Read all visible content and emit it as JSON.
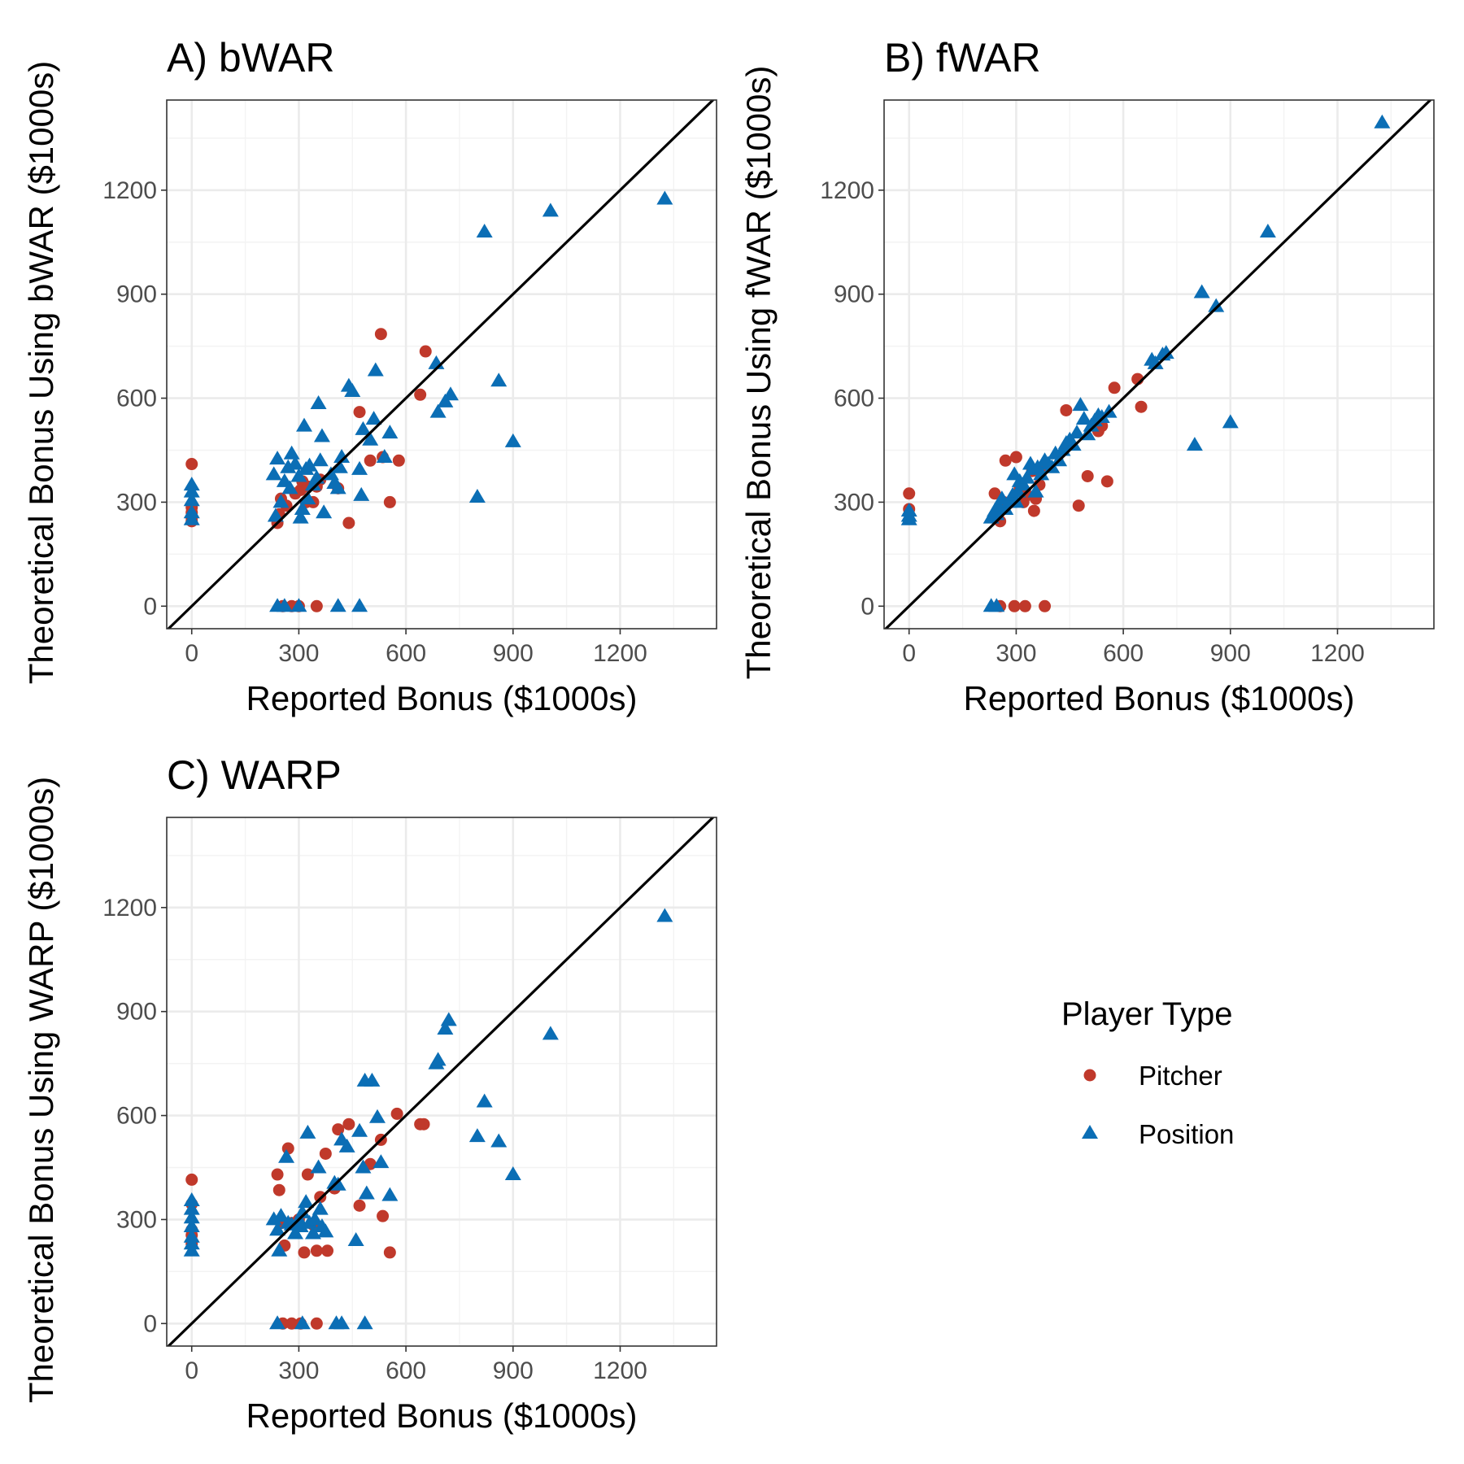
{
  "colors": {
    "pitcher": "#C0392B",
    "position": "#0B6EB5"
  },
  "legend": {
    "title": "Player Type",
    "items": [
      {
        "label": "Pitcher",
        "shape": "circle",
        "color": "#C0392B"
      },
      {
        "label": "Position",
        "shape": "triangle",
        "color": "#0B6EB5"
      }
    ]
  },
  "chart_data": [
    {
      "type": "scatter",
      "title": "A) bWAR",
      "xlabel": "Reported Bonus ($1000s)",
      "ylabel": "Theoretical Bonus Using bWAR ($1000s)",
      "xlim": [
        -70,
        1470
      ],
      "ylim": [
        -65,
        1460
      ],
      "xticks": [
        0,
        300,
        600,
        900,
        1200
      ],
      "yticks": [
        0,
        300,
        600,
        900,
        1200
      ],
      "grid": true,
      "reference_line": "y = x",
      "series": [
        {
          "name": "Pitcher",
          "marker": "circle",
          "points": [
            [
              0,
              410
            ],
            [
              0,
              285
            ],
            [
              0,
              270
            ],
            [
              0,
              255
            ],
            [
              0,
              245
            ],
            [
              240,
              240
            ],
            [
              245,
              265
            ],
            [
              250,
              310
            ],
            [
              265,
              290
            ],
            [
              290,
              325
            ],
            [
              305,
              335
            ],
            [
              310,
              360
            ],
            [
              320,
              300
            ],
            [
              325,
              345
            ],
            [
              340,
              300
            ],
            [
              350,
              345
            ],
            [
              360,
              365
            ],
            [
              410,
              340
            ],
            [
              440,
              240
            ],
            [
              470,
              560
            ],
            [
              500,
              420
            ],
            [
              530,
              785
            ],
            [
              535,
              430
            ],
            [
              555,
              300
            ],
            [
              580,
              420
            ],
            [
              640,
              610
            ],
            [
              655,
              735
            ],
            [
              255,
              0
            ],
            [
              280,
              0
            ],
            [
              300,
              0
            ],
            [
              350,
              0
            ]
          ]
        },
        {
          "name": "Position",
          "marker": "triangle",
          "points": [
            [
              0,
              350
            ],
            [
              0,
              330
            ],
            [
              0,
              305
            ],
            [
              0,
              270
            ],
            [
              0,
              250
            ],
            [
              230,
              380
            ],
            [
              235,
              260
            ],
            [
              240,
              425
            ],
            [
              250,
              300
            ],
            [
              260,
              360
            ],
            [
              270,
              400
            ],
            [
              275,
              340
            ],
            [
              280,
              440
            ],
            [
              290,
              410
            ],
            [
              300,
              375
            ],
            [
              305,
              255
            ],
            [
              310,
              280
            ],
            [
              315,
              520
            ],
            [
              320,
              395
            ],
            [
              325,
              310
            ],
            [
              330,
              405
            ],
            [
              340,
              350
            ],
            [
              350,
              370
            ],
            [
              355,
              585
            ],
            [
              360,
              420
            ],
            [
              365,
              490
            ],
            [
              370,
              270
            ],
            [
              390,
              380
            ],
            [
              400,
              355
            ],
            [
              410,
              340
            ],
            [
              415,
              400
            ],
            [
              420,
              430
            ],
            [
              440,
              635
            ],
            [
              450,
              620
            ],
            [
              470,
              395
            ],
            [
              475,
              320
            ],
            [
              480,
              510
            ],
            [
              500,
              480
            ],
            [
              510,
              540
            ],
            [
              515,
              680
            ],
            [
              540,
              430
            ],
            [
              555,
              500
            ],
            [
              685,
              700
            ],
            [
              690,
              560
            ],
            [
              710,
              590
            ],
            [
              725,
              610
            ],
            [
              800,
              315
            ],
            [
              820,
              1080
            ],
            [
              860,
              650
            ],
            [
              900,
              475
            ],
            [
              1005,
              1140
            ],
            [
              1325,
              1175
            ],
            [
              240,
              0
            ],
            [
              260,
              0
            ],
            [
              300,
              0
            ],
            [
              410,
              0
            ],
            [
              470,
              0
            ]
          ]
        }
      ]
    },
    {
      "type": "scatter",
      "title": "B) fWAR",
      "xlabel": "Reported Bonus ($1000s)",
      "ylabel": "Theoretical Bonus Using fWAR ($1000s)",
      "xlim": [
        -70,
        1470
      ],
      "ylim": [
        -65,
        1460
      ],
      "xticks": [
        0,
        300,
        600,
        900,
        1200
      ],
      "yticks": [
        0,
        300,
        600,
        900,
        1200
      ],
      "grid": true,
      "reference_line": "y = x",
      "series": [
        {
          "name": "Pitcher",
          "marker": "circle",
          "points": [
            [
              0,
              325
            ],
            [
              0,
              280
            ],
            [
              240,
              325
            ],
            [
              255,
              245
            ],
            [
              265,
              300
            ],
            [
              270,
              420
            ],
            [
              285,
              300
            ],
            [
              300,
              430
            ],
            [
              310,
              340
            ],
            [
              320,
              300
            ],
            [
              330,
              320
            ],
            [
              345,
              390
            ],
            [
              350,
              275
            ],
            [
              355,
              310
            ],
            [
              365,
              350
            ],
            [
              370,
              390
            ],
            [
              440,
              565
            ],
            [
              475,
              290
            ],
            [
              500,
              375
            ],
            [
              530,
              505
            ],
            [
              540,
              520
            ],
            [
              555,
              360
            ],
            [
              575,
              630
            ],
            [
              640,
              655
            ],
            [
              650,
              575
            ],
            [
              255,
              0
            ],
            [
              295,
              0
            ],
            [
              325,
              0
            ],
            [
              380,
              0
            ]
          ]
        },
        {
          "name": "Position",
          "marker": "triangle",
          "points": [
            [
              0,
              275
            ],
            [
              0,
              260
            ],
            [
              0,
              250
            ],
            [
              230,
              255
            ],
            [
              240,
              275
            ],
            [
              245,
              265
            ],
            [
              250,
              290
            ],
            [
              260,
              310
            ],
            [
              270,
              280
            ],
            [
              280,
              300
            ],
            [
              290,
              320
            ],
            [
              295,
              380
            ],
            [
              300,
              300
            ],
            [
              305,
              330
            ],
            [
              310,
              360
            ],
            [
              320,
              350
            ],
            [
              330,
              370
            ],
            [
              340,
              410
            ],
            [
              345,
              395
            ],
            [
              355,
              330
            ],
            [
              360,
              400
            ],
            [
              370,
              380
            ],
            [
              380,
              420
            ],
            [
              390,
              410
            ],
            [
              400,
              400
            ],
            [
              410,
              440
            ],
            [
              420,
              420
            ],
            [
              430,
              450
            ],
            [
              440,
              470
            ],
            [
              450,
              480
            ],
            [
              460,
              465
            ],
            [
              470,
              500
            ],
            [
              480,
              580
            ],
            [
              490,
              540
            ],
            [
              500,
              495
            ],
            [
              510,
              520
            ],
            [
              520,
              535
            ],
            [
              530,
              550
            ],
            [
              540,
              545
            ],
            [
              560,
              560
            ],
            [
              680,
              710
            ],
            [
              690,
              700
            ],
            [
              710,
              725
            ],
            [
              720,
              730
            ],
            [
              800,
              465
            ],
            [
              820,
              905
            ],
            [
              860,
              865
            ],
            [
              900,
              530
            ],
            [
              1005,
              1080
            ],
            [
              1325,
              1395
            ],
            [
              230,
              0
            ],
            [
              245,
              0
            ]
          ]
        }
      ]
    },
    {
      "type": "scatter",
      "title": "C) WARP",
      "xlabel": "Reported Bonus ($1000s)",
      "ylabel": "Theoretical Bonus Using WARP ($1000s)",
      "xlim": [
        -70,
        1470
      ],
      "ylim": [
        -65,
        1460
      ],
      "xticks": [
        0,
        300,
        600,
        900,
        1200
      ],
      "yticks": [
        0,
        300,
        600,
        900,
        1200
      ],
      "grid": true,
      "reference_line": "y = x",
      "series": [
        {
          "name": "Pitcher",
          "marker": "circle",
          "points": [
            [
              0,
              415
            ],
            [
              0,
              345
            ],
            [
              0,
              270
            ],
            [
              0,
              255
            ],
            [
              0,
              230
            ],
            [
              240,
              430
            ],
            [
              245,
              385
            ],
            [
              250,
              290
            ],
            [
              260,
              225
            ],
            [
              270,
              505
            ],
            [
              280,
              290
            ],
            [
              300,
              300
            ],
            [
              315,
              205
            ],
            [
              325,
              430
            ],
            [
              340,
              285
            ],
            [
              350,
              210
            ],
            [
              360,
              365
            ],
            [
              375,
              490
            ],
            [
              380,
              210
            ],
            [
              400,
              390
            ],
            [
              410,
              560
            ],
            [
              440,
              575
            ],
            [
              470,
              340
            ],
            [
              500,
              460
            ],
            [
              530,
              530
            ],
            [
              535,
              310
            ],
            [
              555,
              205
            ],
            [
              575,
              605
            ],
            [
              640,
              575
            ],
            [
              650,
              575
            ],
            [
              255,
              0
            ],
            [
              280,
              0
            ],
            [
              305,
              0
            ],
            [
              350,
              0
            ]
          ]
        },
        {
          "name": "Position",
          "marker": "triangle",
          "points": [
            [
              0,
              355
            ],
            [
              0,
              330
            ],
            [
              0,
              305
            ],
            [
              0,
              280
            ],
            [
              0,
              250
            ],
            [
              0,
              230
            ],
            [
              0,
              210
            ],
            [
              230,
              300
            ],
            [
              240,
              270
            ],
            [
              245,
              210
            ],
            [
              250,
              310
            ],
            [
              265,
              480
            ],
            [
              270,
              290
            ],
            [
              280,
              285
            ],
            [
              290,
              260
            ],
            [
              300,
              300
            ],
            [
              305,
              280
            ],
            [
              310,
              320
            ],
            [
              320,
              350
            ],
            [
              325,
              550
            ],
            [
              330,
              290
            ],
            [
              340,
              260
            ],
            [
              345,
              300
            ],
            [
              355,
              450
            ],
            [
              360,
              330
            ],
            [
              365,
              280
            ],
            [
              375,
              265
            ],
            [
              400,
              405
            ],
            [
              410,
              400
            ],
            [
              420,
              530
            ],
            [
              435,
              510
            ],
            [
              460,
              240
            ],
            [
              470,
              555
            ],
            [
              480,
              450
            ],
            [
              485,
              700
            ],
            [
              490,
              375
            ],
            [
              505,
              700
            ],
            [
              520,
              595
            ],
            [
              530,
              465
            ],
            [
              555,
              370
            ],
            [
              685,
              750
            ],
            [
              690,
              760
            ],
            [
              710,
              850
            ],
            [
              720,
              875
            ],
            [
              800,
              540
            ],
            [
              820,
              640
            ],
            [
              860,
              525
            ],
            [
              900,
              430
            ],
            [
              1005,
              835
            ],
            [
              1325,
              1175
            ],
            [
              240,
              0
            ],
            [
              310,
              0
            ],
            [
              405,
              0
            ],
            [
              420,
              0
            ],
            [
              485,
              0
            ]
          ]
        }
      ]
    }
  ]
}
